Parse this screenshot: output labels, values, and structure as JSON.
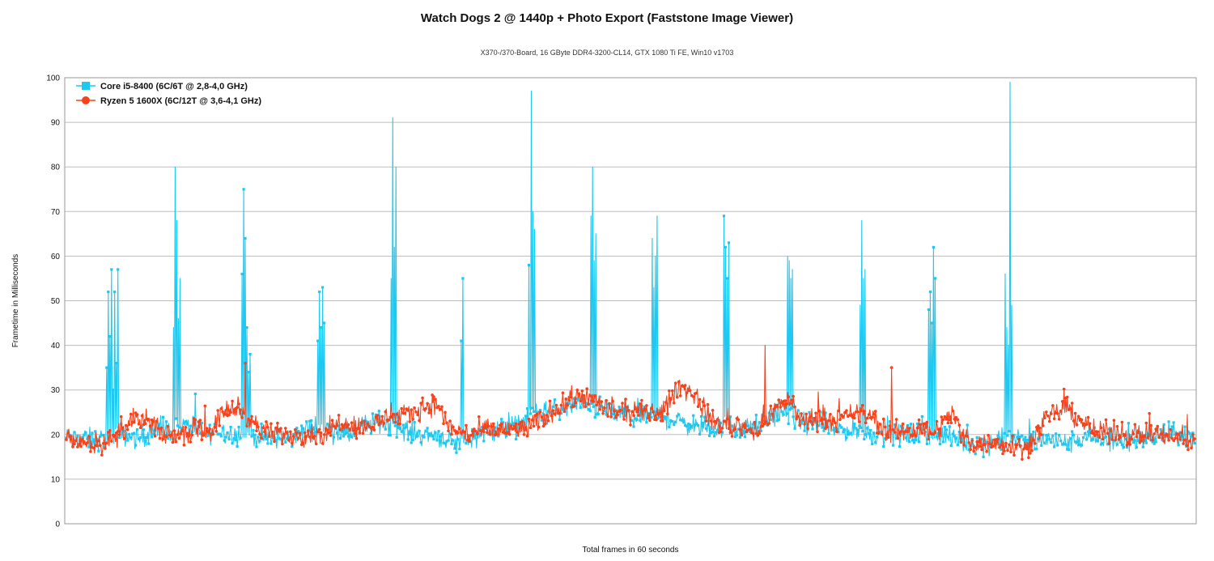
{
  "chart_data": {
    "type": "line",
    "title": "Watch Dogs 2 @ 1440p + Photo Export (Faststone Image Viewer)",
    "subtitle": "X370-/370-Board, 16 GByte DDR4-3200-CL14, GTX 1080 Ti FE, Win10 v1703",
    "xlabel": "Total frames in 60 seconds",
    "ylabel": "Frametime in Milliseconds",
    "ylim": [
      0,
      100
    ],
    "yticks": [
      0,
      10,
      20,
      30,
      40,
      50,
      60,
      70,
      80,
      90,
      100
    ],
    "grid": "horizontal",
    "legend_position": "top-left",
    "series": [
      {
        "name": "Core i5-8400 (6C/6T @ 2,8-4,0 GHz)",
        "color": "#1ec8f0",
        "marker": "square",
        "baseline": [
          [
            0,
            19
          ],
          [
            40,
            19
          ],
          [
            70,
            20
          ],
          [
            90,
            19
          ],
          [
            110,
            21
          ],
          [
            130,
            21
          ],
          [
            150,
            22
          ],
          [
            170,
            20
          ],
          [
            190,
            21
          ],
          [
            210,
            20
          ],
          [
            230,
            20
          ],
          [
            250,
            19
          ],
          [
            270,
            19
          ],
          [
            290,
            20
          ],
          [
            310,
            22
          ],
          [
            330,
            21
          ],
          [
            350,
            20
          ],
          [
            370,
            22
          ],
          [
            390,
            23
          ],
          [
            410,
            22
          ],
          [
            420,
            21
          ],
          [
            440,
            20
          ],
          [
            460,
            20
          ],
          [
            480,
            18
          ],
          [
            500,
            19
          ],
          [
            520,
            21
          ],
          [
            540,
            21
          ],
          [
            560,
            22
          ],
          [
            580,
            25
          ],
          [
            600,
            25
          ],
          [
            620,
            26
          ],
          [
            640,
            27
          ],
          [
            660,
            26
          ],
          [
            680,
            25
          ],
          [
            700,
            24
          ],
          [
            720,
            24
          ],
          [
            740,
            24
          ],
          [
            760,
            23
          ],
          [
            780,
            22
          ],
          [
            800,
            21
          ],
          [
            820,
            22
          ],
          [
            840,
            21
          ],
          [
            860,
            22
          ],
          [
            880,
            25
          ],
          [
            900,
            24
          ],
          [
            910,
            23
          ],
          [
            940,
            22
          ],
          [
            960,
            21
          ],
          [
            980,
            21
          ],
          [
            1000,
            20
          ],
          [
            1020,
            20
          ],
          [
            1040,
            20
          ],
          [
            1060,
            20
          ],
          [
            1080,
            20
          ],
          [
            1100,
            19
          ],
          [
            1120,
            18
          ],
          [
            1140,
            18
          ],
          [
            1160,
            19
          ],
          [
            1180,
            19
          ],
          [
            1200,
            18
          ],
          [
            1220,
            19
          ],
          [
            1240,
            18
          ],
          [
            1260,
            19
          ],
          [
            1280,
            19
          ],
          [
            1300,
            18
          ],
          [
            1320,
            19
          ],
          [
            1340,
            19
          ],
          [
            1360,
            20
          ],
          [
            1380,
            20
          ],
          [
            1400,
            19
          ]
        ],
        "spikes": [
          [
            [
              50,
              35
            ],
            [
              52,
              52
            ],
            [
              54,
              42
            ],
            [
              56,
              57
            ],
            [
              58,
              30
            ],
            [
              60,
              52
            ],
            [
              62,
              36
            ],
            [
              64,
              57
            ]
          ],
          [
            [
              133,
              44
            ],
            [
              135,
              80
            ],
            [
              137,
              68
            ],
            [
              139,
              46
            ],
            [
              141,
              55
            ]
          ],
          [
            [
              218,
              56
            ],
            [
              220,
              75
            ],
            [
              222,
              64
            ],
            [
              224,
              44
            ],
            [
              226,
              34
            ],
            [
              228,
              38
            ]
          ],
          [
            [
              312,
              41
            ],
            [
              314,
              52
            ],
            [
              316,
              44
            ],
            [
              318,
              53
            ],
            [
              320,
              45
            ]
          ],
          [
            [
              403,
              55
            ],
            [
              405,
              91
            ],
            [
              407,
              62
            ],
            [
              409,
              80
            ]
          ],
          [
            [
              490,
              41
            ],
            [
              492,
              55
            ]
          ],
          [
            [
              574,
              58
            ],
            [
              577,
              97
            ],
            [
              579,
              70
            ],
            [
              581,
              66
            ]
          ],
          [
            [
              651,
              69
            ],
            [
              653,
              80
            ],
            [
              655,
              59
            ],
            [
              657,
              65
            ]
          ],
          [
            [
              727,
              64
            ],
            [
              729,
              53
            ],
            [
              731,
              60
            ],
            [
              733,
              69
            ]
          ],
          [
            [
              816,
              69
            ],
            [
              818,
              62
            ],
            [
              820,
              55
            ],
            [
              822,
              63
            ]
          ],
          [
            [
              895,
              60
            ],
            [
              897,
              59
            ],
            [
              899,
              55
            ],
            [
              901,
              57
            ]
          ],
          [
            [
              985,
              49
            ],
            [
              987,
              68
            ],
            [
              989,
              55
            ],
            [
              991,
              57
            ]
          ],
          [
            [
              1070,
              48
            ],
            [
              1072,
              52
            ],
            [
              1074,
              45
            ],
            [
              1076,
              62
            ],
            [
              1078,
              55
            ]
          ],
          [
            [
              1165,
              56
            ],
            [
              1167,
              44
            ],
            [
              1169,
              40
            ],
            [
              1171,
              99
            ],
            [
              1173,
              49
            ]
          ]
        ]
      },
      {
        "name": "Ryzen 5 1600X (6C/12T @ 3,6-4,1 GHz)",
        "color": "#f9411a",
        "marker": "circle",
        "baseline": [
          [
            0,
            19
          ],
          [
            40,
            18
          ],
          [
            60,
            19
          ],
          [
            80,
            23
          ],
          [
            100,
            23
          ],
          [
            120,
            20
          ],
          [
            140,
            20
          ],
          [
            160,
            21
          ],
          [
            180,
            21
          ],
          [
            200,
            26
          ],
          [
            220,
            25
          ],
          [
            240,
            21
          ],
          [
            260,
            20
          ],
          [
            280,
            20
          ],
          [
            300,
            20
          ],
          [
            320,
            20
          ],
          [
            340,
            23
          ],
          [
            360,
            22
          ],
          [
            380,
            22
          ],
          [
            400,
            24
          ],
          [
            420,
            24
          ],
          [
            440,
            26
          ],
          [
            460,
            27
          ],
          [
            470,
            23
          ],
          [
            480,
            21
          ],
          [
            500,
            20
          ],
          [
            520,
            21
          ],
          [
            540,
            21
          ],
          [
            560,
            21
          ],
          [
            580,
            22
          ],
          [
            600,
            25
          ],
          [
            620,
            27
          ],
          [
            640,
            29
          ],
          [
            660,
            27
          ],
          [
            680,
            25
          ],
          [
            700,
            25
          ],
          [
            720,
            25
          ],
          [
            740,
            25
          ],
          [
            760,
            31
          ],
          [
            780,
            29
          ],
          [
            800,
            23
          ],
          [
            820,
            22
          ],
          [
            840,
            22
          ],
          [
            860,
            21
          ],
          [
            880,
            26
          ],
          [
            900,
            28
          ],
          [
            910,
            23
          ],
          [
            940,
            24
          ],
          [
            960,
            23
          ],
          [
            980,
            25
          ],
          [
            1000,
            24
          ],
          [
            1020,
            20
          ],
          [
            1040,
            21
          ],
          [
            1060,
            21
          ],
          [
            1080,
            21
          ],
          [
            1100,
            25
          ],
          [
            1110,
            20
          ],
          [
            1130,
            18
          ],
          [
            1150,
            18
          ],
          [
            1170,
            18
          ],
          [
            1190,
            17
          ],
          [
            1200,
            19
          ],
          [
            1220,
            24
          ],
          [
            1240,
            26
          ],
          [
            1260,
            23
          ],
          [
            1280,
            20
          ],
          [
            1300,
            21
          ],
          [
            1320,
            20
          ],
          [
            1340,
            20
          ],
          [
            1360,
            20
          ],
          [
            1380,
            19
          ],
          [
            1400,
            18
          ]
        ],
        "spikes": [
          [
            [
              867,
              40
            ]
          ],
          [
            [
              1024,
              35
            ]
          ],
          [
            [
              222,
              36
            ]
          ]
        ]
      }
    ],
    "frame_count": 1400
  }
}
